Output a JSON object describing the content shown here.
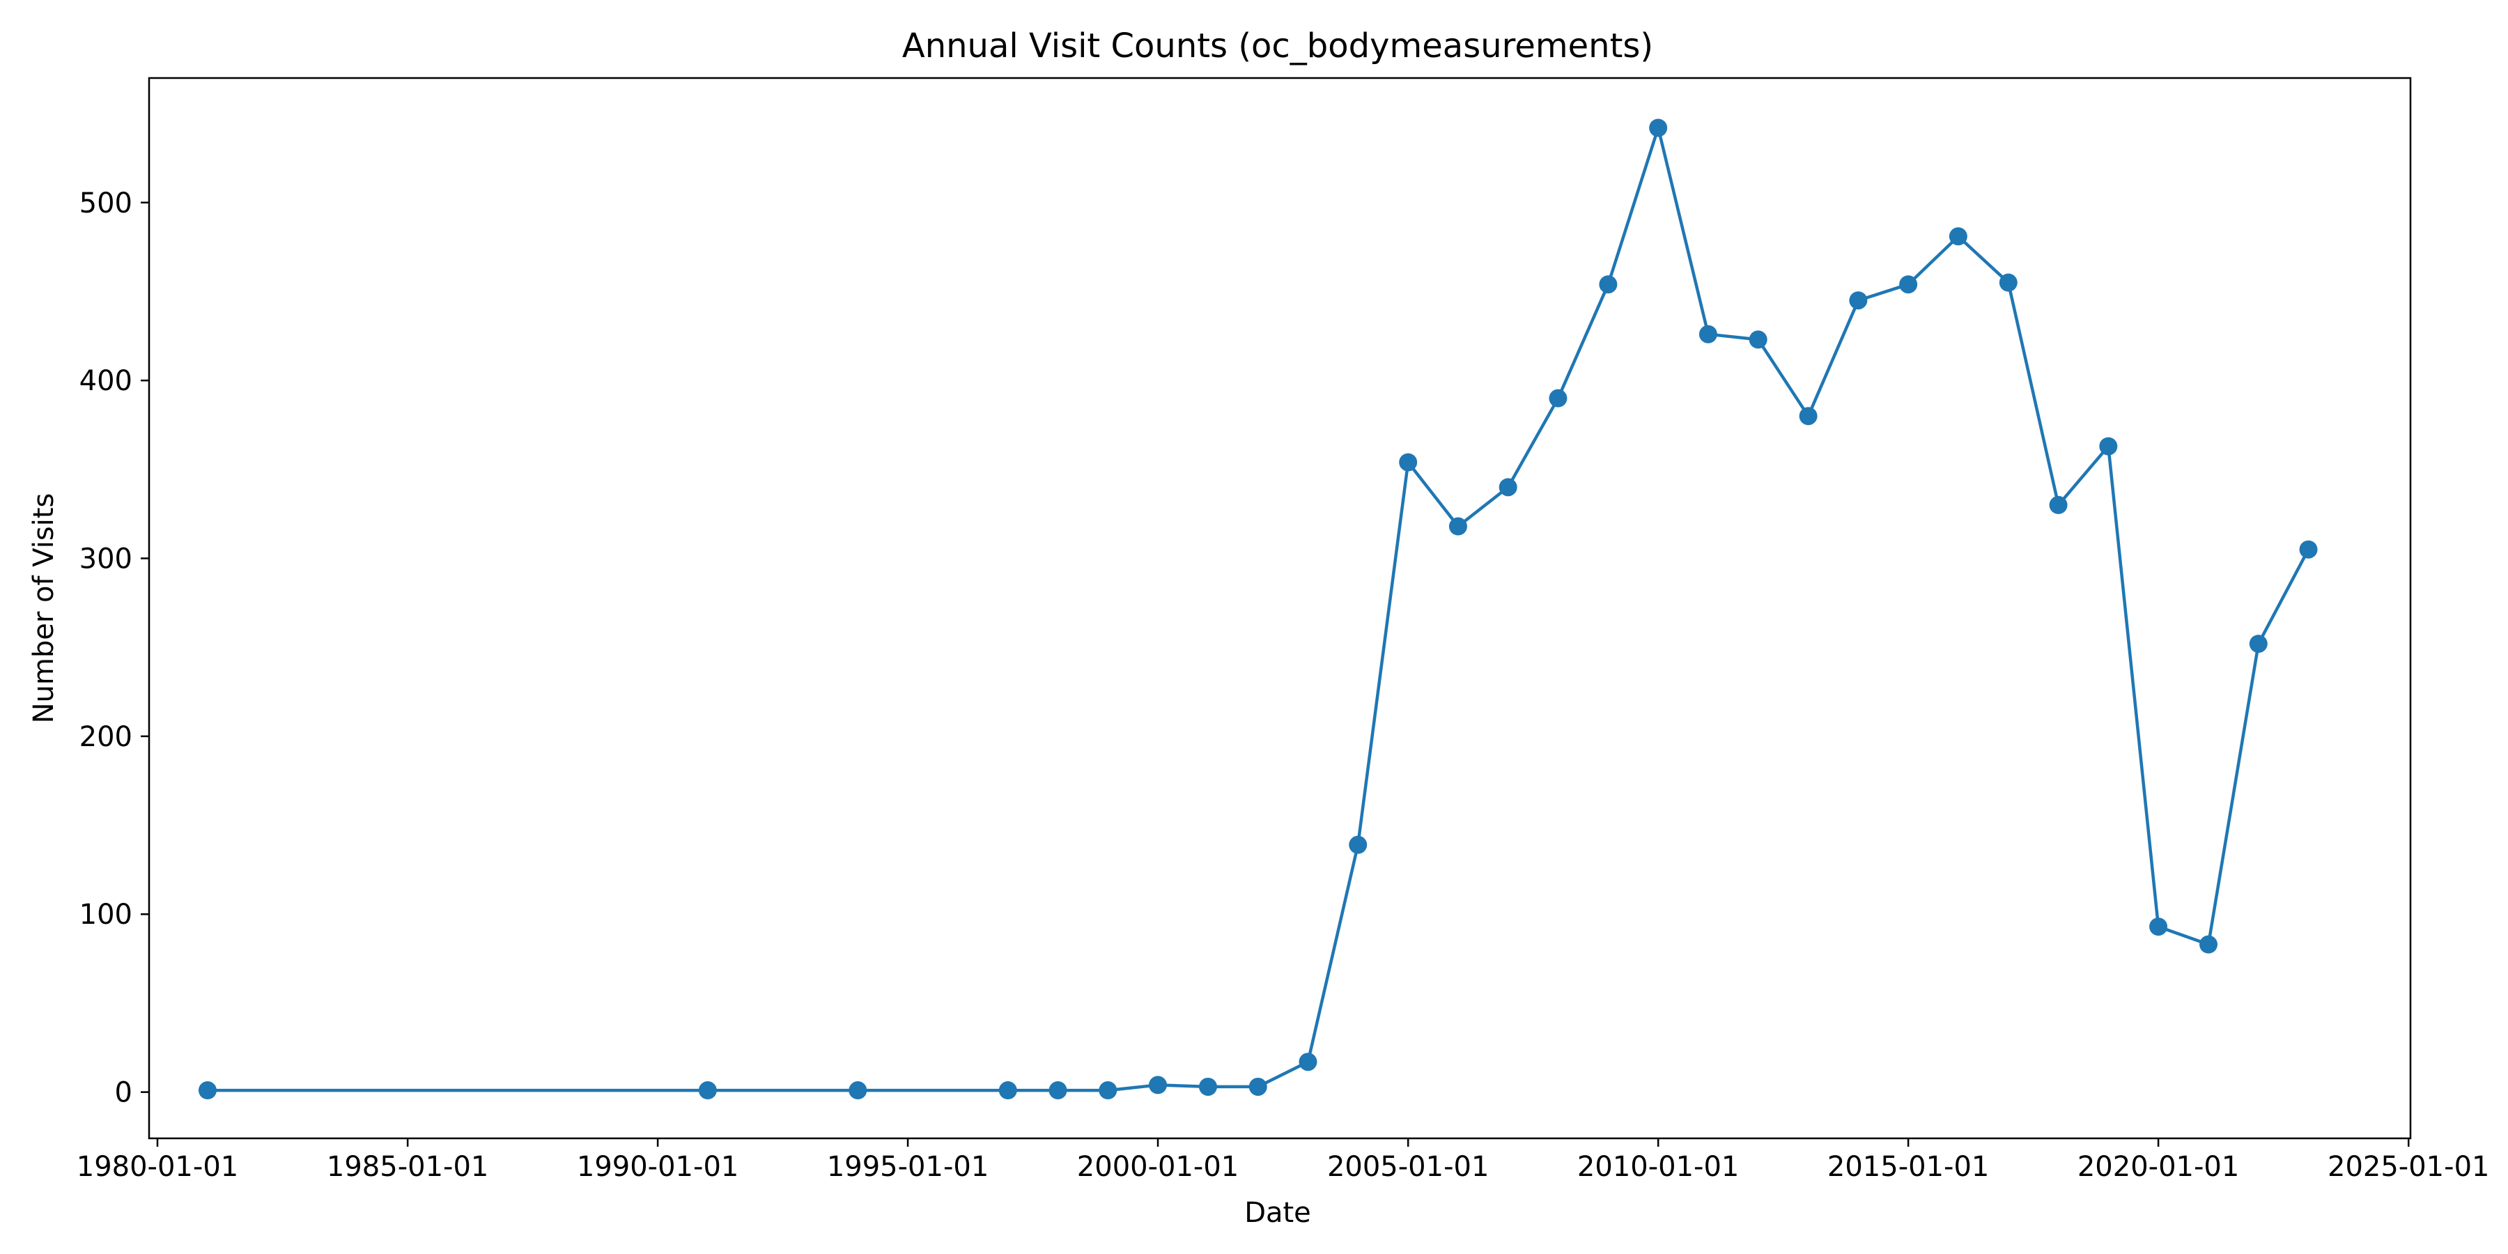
{
  "chart_data": {
    "type": "line",
    "title": "Annual Visit Counts (oc_bodymeasurements)",
    "xlabel": "Date",
    "ylabel": "Number of Visits",
    "x_ticks": [
      "1980-01-01",
      "1985-01-01",
      "1990-01-01",
      "1995-01-01",
      "2000-01-01",
      "2005-01-01",
      "2010-01-01",
      "2015-01-01",
      "2020-01-01",
      "2025-01-01"
    ],
    "y_ticks": [
      0,
      100,
      200,
      300,
      400,
      500
    ],
    "xlim": [
      "1979-11-01",
      "2025-01-15"
    ],
    "ylim": [
      -26,
      570
    ],
    "grid": false,
    "legend": "none",
    "series": [
      {
        "color": "#1f77b4",
        "marker": "circle",
        "points": [
          {
            "x": "1981-01-01",
            "y": 1
          },
          {
            "x": "1991-01-01",
            "y": 1
          },
          {
            "x": "1994-01-01",
            "y": 1
          },
          {
            "x": "1997-01-01",
            "y": 1
          },
          {
            "x": "1998-01-01",
            "y": 1
          },
          {
            "x": "1999-01-01",
            "y": 1
          },
          {
            "x": "2000-01-01",
            "y": 4
          },
          {
            "x": "2001-01-01",
            "y": 3
          },
          {
            "x": "2002-01-01",
            "y": 3
          },
          {
            "x": "2003-01-01",
            "y": 17
          },
          {
            "x": "2004-01-01",
            "y": 139
          },
          {
            "x": "2005-01-01",
            "y": 354
          },
          {
            "x": "2006-01-01",
            "y": 318
          },
          {
            "x": "2007-01-01",
            "y": 340
          },
          {
            "x": "2008-01-01",
            "y": 390
          },
          {
            "x": "2009-01-01",
            "y": 454
          },
          {
            "x": "2010-01-01",
            "y": 542
          },
          {
            "x": "2011-01-01",
            "y": 426
          },
          {
            "x": "2012-01-01",
            "y": 423
          },
          {
            "x": "2013-01-01",
            "y": 380
          },
          {
            "x": "2014-01-01",
            "y": 445
          },
          {
            "x": "2015-01-01",
            "y": 454
          },
          {
            "x": "2016-01-01",
            "y": 481
          },
          {
            "x": "2017-01-01",
            "y": 455
          },
          {
            "x": "2018-01-01",
            "y": 330
          },
          {
            "x": "2019-01-01",
            "y": 363
          },
          {
            "x": "2020-01-01",
            "y": 93
          },
          {
            "x": "2021-01-01",
            "y": 83
          },
          {
            "x": "2022-01-01",
            "y": 252
          },
          {
            "x": "2023-01-01",
            "y": 305
          }
        ]
      }
    ]
  }
}
